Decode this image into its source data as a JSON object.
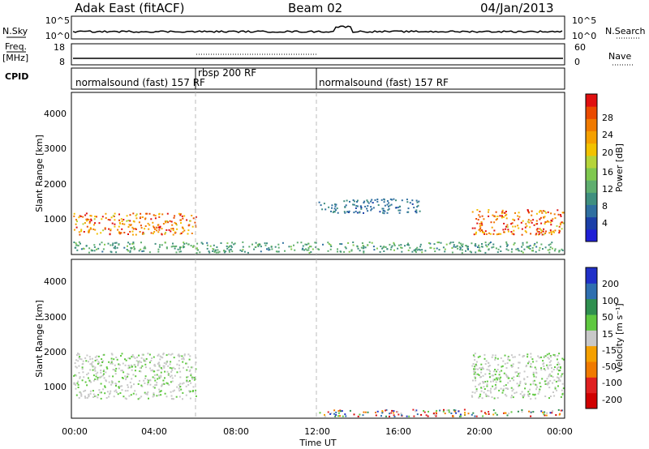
{
  "header": {
    "title": "Adak East (fitACF)",
    "beam": "Beam 02",
    "date": "04/Jan/2013"
  },
  "params": {
    "nsky_label": "N.Sky",
    "nsearch_label": "N.Search",
    "noise_ticks_left": [
      "10^5",
      "10^0"
    ],
    "noise_ticks_right": [
      "10^5",
      "10^0"
    ],
    "freq_label_1": "Freq.",
    "freq_label_2": "[MHz]",
    "freq_ticks": [
      "18",
      "8"
    ],
    "nave_label": "Nave",
    "nave_ticks": [
      "60",
      "0"
    ],
    "cpid_label": "CPID",
    "modes": [
      {
        "label": "normalsound (fast) 157 RF",
        "start_hour": 0
      },
      {
        "label": "rbsp 200 RF",
        "start_hour": 6
      },
      {
        "label": "normalsound (fast) 157 RF",
        "start_hour": 12
      }
    ]
  },
  "axes": {
    "xlabel": "Time UT",
    "ylabel": "Slant Range [km]",
    "x_ticks": [
      "00:00",
      "04:00",
      "08:00",
      "12:00",
      "16:00",
      "20:00",
      "00:00"
    ],
    "y_ticks": [
      "1000",
      "2000",
      "3000",
      "4000"
    ]
  },
  "chart_data": [
    {
      "type": "heatmap",
      "title": "",
      "xlabel": "Time UT",
      "ylabel": "Slant Range [km]",
      "xlim": [
        0,
        24
      ],
      "ylim": [
        180,
        4600
      ],
      "colorbar_label": "Power [dB]",
      "colorbar_ticks": [
        "4",
        "8",
        "12",
        "16",
        "20",
        "24",
        "28"
      ],
      "colorbar_range": [
        0,
        30
      ],
      "colors": [
        "#1f1fd6",
        "#1b3fa8",
        "#2f6fa0",
        "#3f8f7f",
        "#5fae6f",
        "#7fc84f",
        "#b5d43a",
        "#f2c200",
        "#f5a000",
        "#f07a00",
        "#ea4a00",
        "#e01010"
      ],
      "mode_boundaries_hours": [
        6,
        12
      ],
      "features": [
        {
          "name": "near-range echoes",
          "from_hour": 0,
          "to_hour": 24,
          "range_km": [
            200,
            500
          ]
        },
        {
          "name": "ground scatter band (evening)",
          "from_hour": 0,
          "to_hour": 6,
          "range_km": [
            700,
            1300
          ],
          "peak_power_db": 28
        },
        {
          "name": "ground scatter band (late)",
          "from_hour": 19.5,
          "to_hour": 24,
          "range_km": [
            700,
            1400
          ],
          "peak_power_db": 28
        },
        {
          "name": "far echoes",
          "from_hour": 12,
          "to_hour": 17,
          "range_km": [
            1300,
            1700
          ],
          "peak_power_db": 8
        }
      ]
    },
    {
      "type": "heatmap",
      "title": "",
      "xlabel": "Time UT",
      "ylabel": "Slant Range [km]",
      "xlim": [
        0,
        24
      ],
      "ylim": [
        180,
        4600
      ],
      "colorbar_label": "Velocity [m s⁻¹]",
      "colorbar_ticks": [
        "200",
        "100",
        "50",
        "15",
        "-15",
        "-50",
        "-100",
        "-200"
      ],
      "colors": [
        "#2030c8",
        "#2f6fb0",
        "#2f8f4f",
        "#5fc840",
        "#c8c8c8",
        "#f5a000",
        "#f07a00",
        "#e02020",
        "#d00000"
      ],
      "features": [
        {
          "name": "ground scatter (grey)",
          "from_hour": 0,
          "to_hour": 6,
          "range_km": [
            700,
            2000
          ],
          "velocity_ms": [
            -15,
            15
          ]
        },
        {
          "name": "ground scatter (grey)",
          "from_hour": 19.5,
          "to_hour": 24,
          "range_km": [
            700,
            2000
          ],
          "velocity_ms": [
            -15,
            15
          ]
        },
        {
          "name": "near-range echoes",
          "from_hour": 12,
          "to_hour": 24,
          "range_km": [
            200,
            400
          ],
          "velocity_ms": [
            -50,
            -15
          ]
        }
      ]
    }
  ]
}
